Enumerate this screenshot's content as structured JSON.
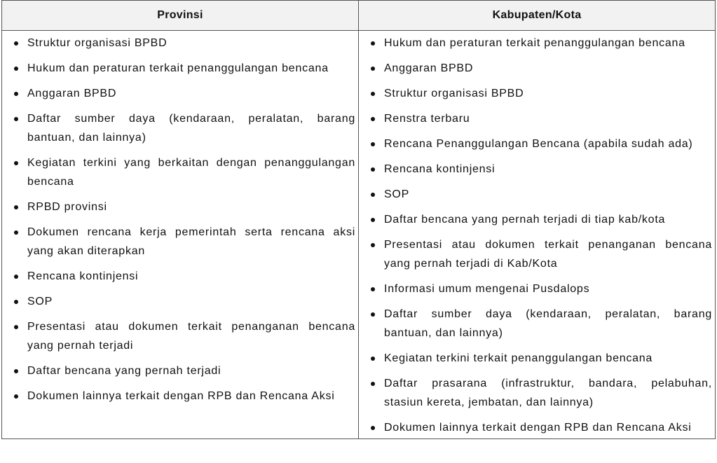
{
  "table": {
    "headers": [
      "Provinsi",
      "Kabupaten/Kota"
    ],
    "provinsi": [
      "Struktur organisasi BPBD",
      "Hukum dan peraturan terkait penanggulangan bencana",
      "Anggaran BPBD",
      "Daftar sumber daya (kendaraan, peralatan, barang bantuan, dan lainnya)",
      "Kegiatan terkini yang berkaitan dengan penanggulangan bencana",
      "RPBD provinsi",
      "Dokumen rencana kerja pemerintah serta rencana aksi yang akan diterapkan",
      "Rencana kontinjensi",
      "SOP",
      "Presentasi atau dokumen terkait penanganan bencana yang pernah terjadi",
      "Daftar bencana yang pernah terjadi",
      "Dokumen lainnya terkait dengan RPB dan Rencana Aksi"
    ],
    "kabupaten_kota": [
      "Hukum dan peraturan terkait penanggulangan bencana",
      "Anggaran BPBD",
      "Struktur organisasi BPBD",
      "Renstra terbaru",
      "Rencana Penanggulangan Bencana (apabila sudah ada)",
      "Rencana kontinjensi",
      "SOP",
      "Daftar bencana yang pernah terjadi di tiap kab/kota",
      "Presentasi atau dokumen terkait penanganan bencana yang pernah terjadi di Kab/Kota",
      "Informasi umum mengenai Pusdalops",
      "Daftar sumber daya (kendaraan, peralatan, barang bantuan, dan lainnya)",
      "Kegiatan terkini terkait penanggulangan bencana",
      "Daftar prasarana (infrastruktur, bandara, pelabuhan, stasiun kereta, jembatan, dan lainnya)",
      "Dokumen lainnya terkait dengan RPB dan Rencana Aksi"
    ]
  }
}
